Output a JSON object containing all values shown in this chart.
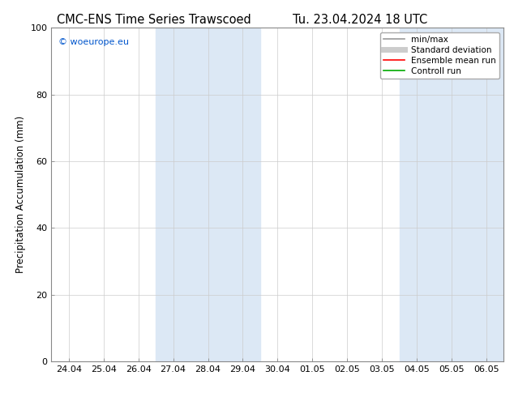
{
  "title": "CMC-ENS Time Series Trawscoed",
  "title2": "Tu. 23.04.2024 18 UTC",
  "ylabel": "Precipitation Accumulation (mm)",
  "watermark": "© woeurope.eu",
  "ylim": [
    0,
    100
  ],
  "yticks": [
    0,
    20,
    40,
    60,
    80,
    100
  ],
  "xtick_labels": [
    "24.04",
    "25.04",
    "26.04",
    "27.04",
    "28.04",
    "29.04",
    "30.04",
    "01.05",
    "02.05",
    "03.05",
    "04.05",
    "05.05",
    "06.05"
  ],
  "xtick_positions": [
    0,
    1,
    2,
    3,
    4,
    5,
    6,
    7,
    8,
    9,
    10,
    11,
    12
  ],
  "xlim": [
    -0.5,
    12.5
  ],
  "shaded_bands": [
    {
      "start": 2.5,
      "end": 5.5,
      "color": "#dce8f5"
    },
    {
      "start": 9.5,
      "end": 12.5,
      "color": "#dce8f5"
    }
  ],
  "legend_items": [
    {
      "label": "min/max",
      "color": "#999999",
      "lw": 1.2
    },
    {
      "label": "Standard deviation",
      "color": "#cccccc",
      "lw": 5
    },
    {
      "label": "Ensemble mean run",
      "color": "#ff0000",
      "lw": 1.2
    },
    {
      "label": "Controll run",
      "color": "#00aa00",
      "lw": 1.2
    }
  ],
  "background_color": "#ffffff",
  "plot_bg_color": "#ffffff",
  "grid_color": "#cccccc",
  "spine_color": "#888888",
  "title_fontsize": 10.5,
  "ylabel_fontsize": 8.5,
  "tick_fontsize": 8,
  "watermark_color": "#0055cc",
  "watermark_fontsize": 8
}
